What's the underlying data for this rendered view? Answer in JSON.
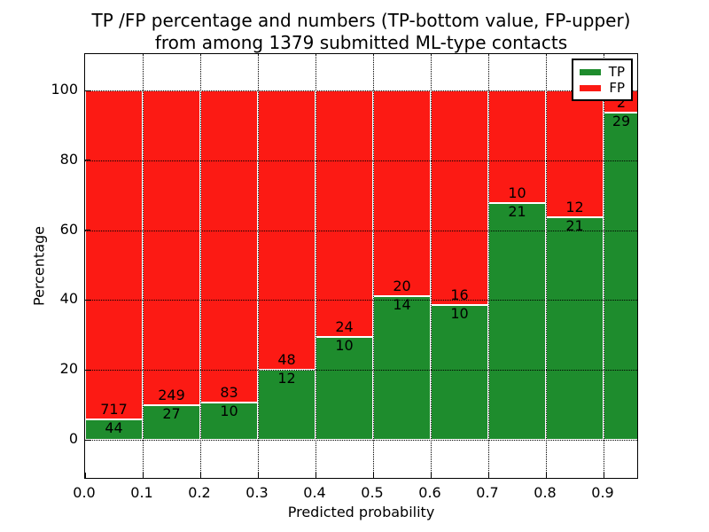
{
  "chart_data": {
    "type": "bar",
    "stacked": true,
    "normalized_to_percent": true,
    "title_lines": [
      "TP /FP percentage and numbers (TP-bottom value, FP-upper)",
      "from among 1379 submitted ML-type contacts"
    ],
    "xlabel": "Predicted probability",
    "ylabel": "Percentage",
    "total_contacts": 1379,
    "x_tick_labels": [
      "0.0",
      "0.1",
      "0.2",
      "0.3",
      "0.4",
      "0.5",
      "0.6",
      "0.7",
      "0.8",
      "0.9"
    ],
    "y_ticks": [
      0,
      20,
      40,
      60,
      80,
      100
    ],
    "xlim": [
      0.0,
      0.9615
    ],
    "ylim": [
      -11.4,
      110.4
    ],
    "bin_width": 0.1,
    "grid": "dotted, both axes, drawn over bars",
    "legend_position": "upper right",
    "colors": {
      "tp": "#1e8c2d",
      "fp": "#fc1a14",
      "bar_edge": "#ffffff"
    },
    "legend": [
      {
        "label": "TP",
        "series": "tp"
      },
      {
        "label": "FP",
        "series": "fp"
      }
    ],
    "bins": [
      {
        "range": [
          0.0,
          0.1
        ],
        "tp": 44,
        "fp": 717
      },
      {
        "range": [
          0.1,
          0.2
        ],
        "tp": 27,
        "fp": 249
      },
      {
        "range": [
          0.2,
          0.3
        ],
        "tp": 10,
        "fp": 83
      },
      {
        "range": [
          0.3,
          0.4
        ],
        "tp": 12,
        "fp": 48
      },
      {
        "range": [
          0.4,
          0.5
        ],
        "tp": 10,
        "fp": 24
      },
      {
        "range": [
          0.5,
          0.6
        ],
        "tp": 14,
        "fp": 20
      },
      {
        "range": [
          0.6,
          0.7
        ],
        "tp": 10,
        "fp": 16
      },
      {
        "range": [
          0.7,
          0.8
        ],
        "tp": 21,
        "fp": 10
      },
      {
        "range": [
          0.8,
          0.9
        ],
        "tp": 21,
        "fp": 12
      },
      {
        "range": [
          0.9,
          1.0
        ],
        "tp": 29,
        "fp": 2
      }
    ]
  }
}
